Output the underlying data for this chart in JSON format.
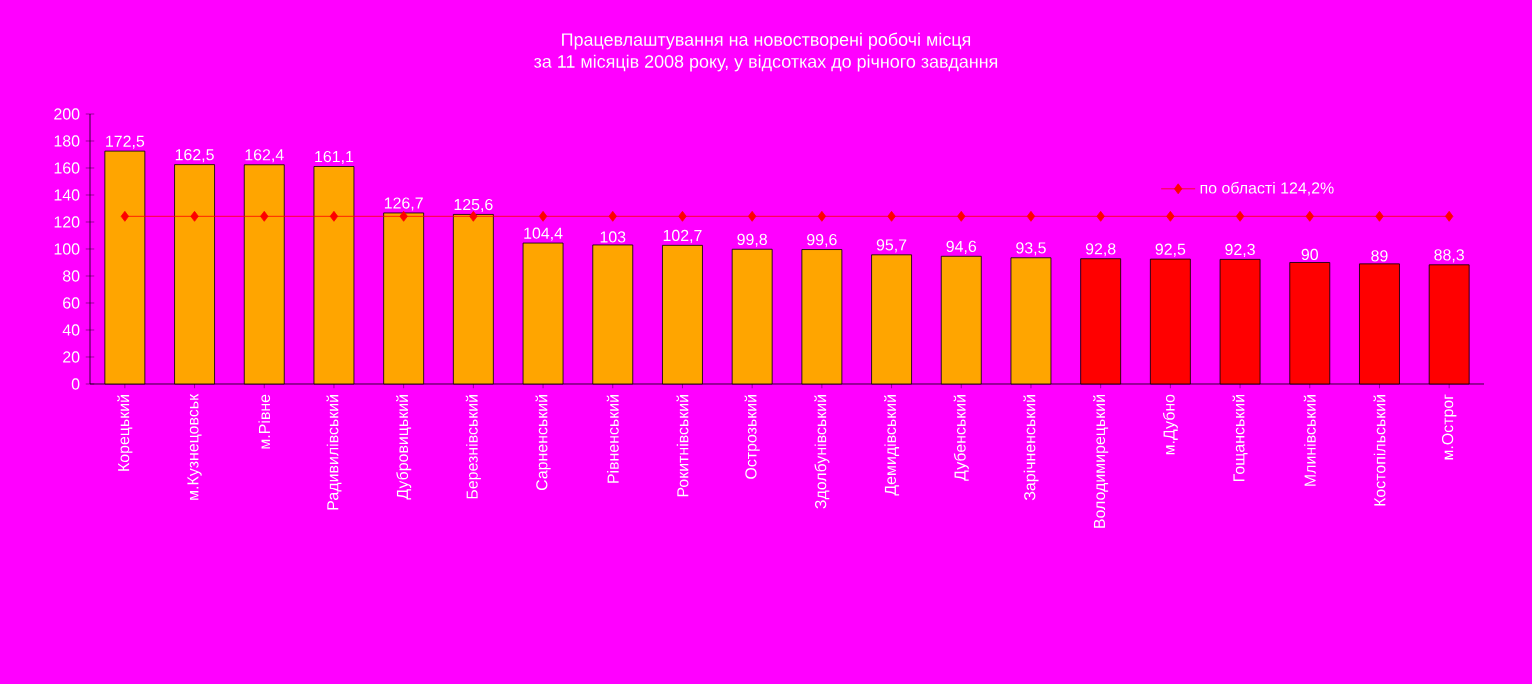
{
  "chart_data": {
    "type": "bar",
    "title": "Працевлаштування на новостворені робочі місця",
    "subtitle": "за 11 місяців 2008 року, у відсотках до річного завдання",
    "categories": [
      "Корецький",
      "м.Кузнецовськ",
      "м.Рівне",
      "Радивилівський",
      "Дубровицький",
      "Березнівський",
      "Сарненський",
      "Рівненський",
      "Рокитнівський",
      "Острозький",
      "Здолбунівський",
      "Демидівський",
      "Дубенський",
      "Зарічненський",
      "Володимирецький",
      "м.Дубно",
      "Гощанський",
      "Млинівський",
      "Костопільський",
      "м.Острог"
    ],
    "values": [
      172.5,
      162.5,
      162.4,
      161.1,
      126.7,
      125.6,
      104.4,
      103,
      102.7,
      99.8,
      99.6,
      95.7,
      94.6,
      93.5,
      92.8,
      92.5,
      92.3,
      90,
      89,
      88.3
    ],
    "value_labels": [
      "172,5",
      "162,5",
      "162,4",
      "161,1",
      "126,7",
      "125,6",
      "104,4",
      "103",
      "102,7",
      "99,8",
      "99,6",
      "95,7",
      "94,6",
      "93,5",
      "92,8",
      "92,5",
      "92,3",
      "90",
      "89",
      "88,3"
    ],
    "colors": [
      "#ffa500",
      "#ffa500",
      "#ffa500",
      "#ffa500",
      "#ffa500",
      "#ffa500",
      "#ffa500",
      "#ffa500",
      "#ffa500",
      "#ffa500",
      "#ffa500",
      "#ffa500",
      "#ffa500",
      "#ffa500",
      "#ff0000",
      "#ff0000",
      "#ff0000",
      "#ff0000",
      "#ff0000",
      "#ff0000"
    ],
    "series": [
      {
        "type": "line",
        "name": "по області 124,2%",
        "color": "#ff0000",
        "values": [
          124.2,
          124.2,
          124.2,
          124.2,
          124.2,
          124.2,
          124.2,
          124.2,
          124.2,
          124.2,
          124.2,
          124.2,
          124.2,
          124.2,
          124.2,
          124.2,
          124.2,
          124.2,
          124.2,
          124.2
        ]
      }
    ],
    "marker": "diamond",
    "ylim": [
      0,
      200
    ],
    "yticks": [
      0,
      20,
      40,
      60,
      80,
      100,
      120,
      140,
      160,
      180,
      200
    ],
    "grid": false,
    "legend": "top right"
  }
}
